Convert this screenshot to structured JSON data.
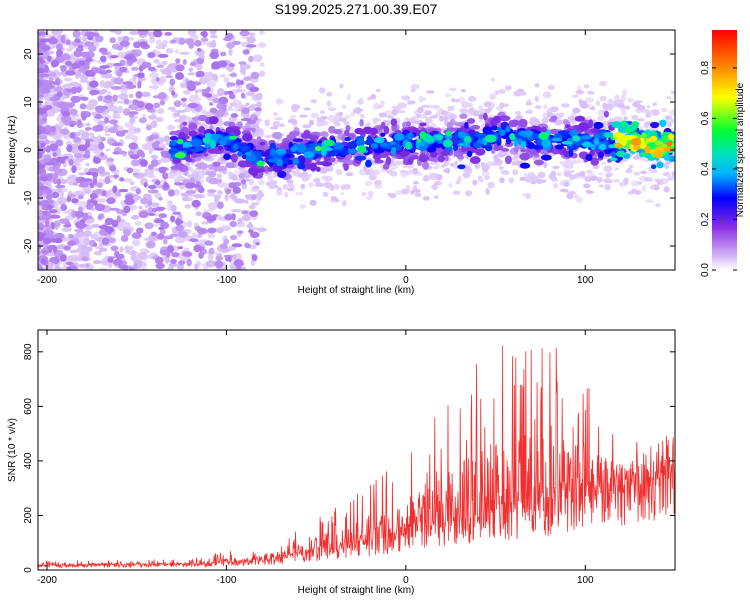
{
  "title": "S199.2025.271.00.39.E07",
  "chart_data": [
    {
      "type": "heatmap",
      "xlabel": "Height of straight line (km)",
      "ylabel": "Frequency (Hz)",
      "xlim": [
        -205,
        150
      ],
      "ylim": [
        -25,
        25
      ],
      "xticks": [
        -200,
        -100,
        0,
        100
      ],
      "yticks": [
        -20,
        -10,
        0,
        10,
        20
      ],
      "colorbar": {
        "label": "Normalized spectral amplitude",
        "range": [
          0,
          0.95
        ],
        "ticks": [
          0.0,
          0.2,
          0.4,
          0.6,
          0.8
        ],
        "colors": [
          "#ffffff",
          "#c9a6f5",
          "#7b2be0",
          "#0000ff",
          "#00c8ff",
          "#00ff50",
          "#ffff00",
          "#ff8000",
          "#ff0000"
        ]
      },
      "centerline": [
        {
          "x": -130,
          "y": 0
        },
        {
          "x": -110,
          "y": 2
        },
        {
          "x": -100,
          "y": 2
        },
        {
          "x": -92,
          "y": 0
        },
        {
          "x": -80,
          "y": -2
        },
        {
          "x": -65,
          "y": -1
        },
        {
          "x": -50,
          "y": 0
        },
        {
          "x": -30,
          "y": 1
        },
        {
          "x": 0,
          "y": 1.5
        },
        {
          "x": 30,
          "y": 2
        },
        {
          "x": 55,
          "y": 3.5
        },
        {
          "x": 70,
          "y": 2
        },
        {
          "x": 100,
          "y": 2
        },
        {
          "x": 130,
          "y": 2
        },
        {
          "x": 140,
          "y": 0.5
        },
        {
          "x": 150,
          "y": 1.5
        }
      ]
    },
    {
      "type": "line",
      "xlabel": "Height of straight line (km)",
      "ylabel": "SNR (10 * v/v)",
      "xlim": [
        -205,
        150
      ],
      "ylim": [
        0,
        880
      ],
      "xticks": [
        -200,
        -100,
        0,
        100
      ],
      "yticks": [
        0,
        200,
        400,
        600,
        800
      ],
      "color": "#f03030",
      "envelope": [
        {
          "x": -205,
          "base": 15,
          "peak": 35
        },
        {
          "x": -120,
          "base": 18,
          "peak": 40
        },
        {
          "x": -100,
          "base": 25,
          "peak": 80
        },
        {
          "x": -75,
          "base": 30,
          "peak": 60
        },
        {
          "x": -60,
          "base": 50,
          "peak": 150
        },
        {
          "x": -40,
          "base": 70,
          "peak": 230
        },
        {
          "x": -20,
          "base": 90,
          "peak": 320
        },
        {
          "x": 0,
          "base": 120,
          "peak": 420
        },
        {
          "x": 20,
          "base": 150,
          "peak": 600
        },
        {
          "x": 40,
          "base": 180,
          "peak": 760
        },
        {
          "x": 60,
          "base": 200,
          "peak": 860
        },
        {
          "x": 80,
          "base": 220,
          "peak": 860
        },
        {
          "x": 100,
          "base": 240,
          "peak": 700
        },
        {
          "x": 120,
          "base": 280,
          "peak": 520
        },
        {
          "x": 150,
          "base": 350,
          "peak": 490
        }
      ]
    }
  ]
}
